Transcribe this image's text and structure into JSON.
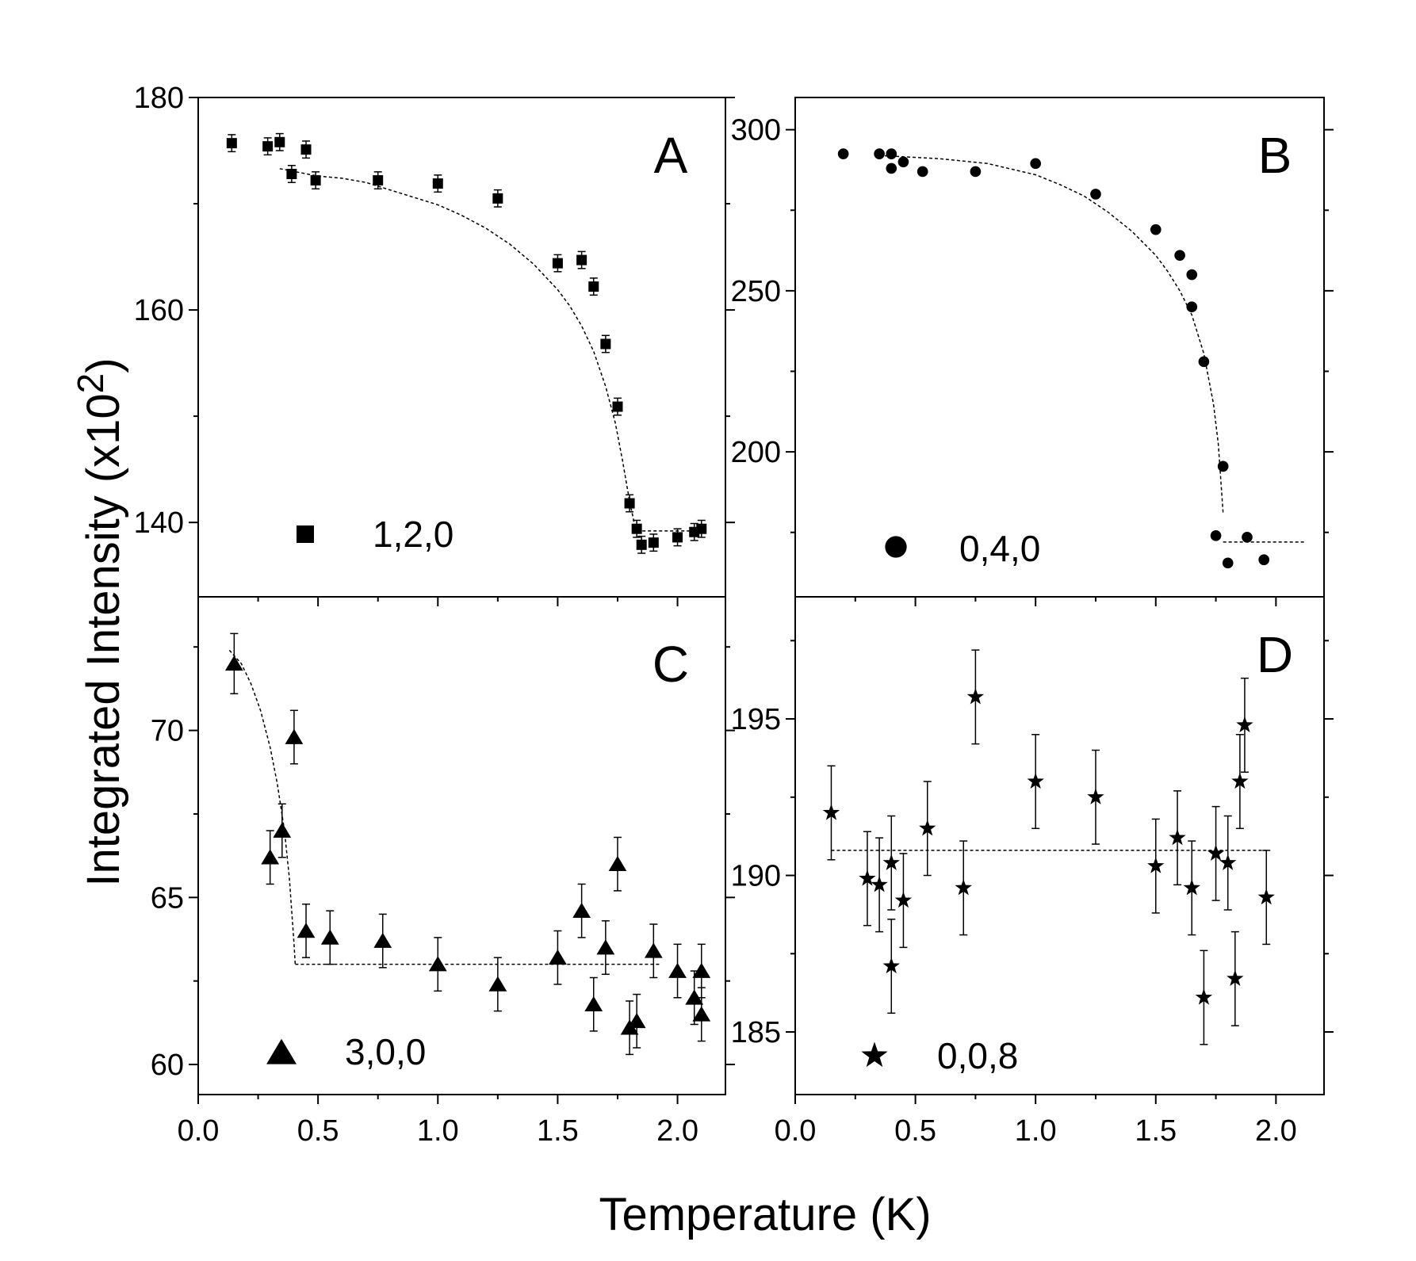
{
  "figure": {
    "xlabel": "Temperature (K)",
    "ylabel_main": "Integrated Intensity (x10",
    "ylabel_sup": "2",
    "ylabel_close": ")"
  },
  "chart_data": [
    {
      "type": "scatter",
      "panel": "A",
      "legend": "1,2,0",
      "marker": "square",
      "xlabel": "Temperature (K)",
      "ylabel": "Integrated Intensity (x10^2)",
      "xlim": [
        0.0,
        2.2
      ],
      "ylim": [
        133,
        180
      ],
      "xticks": [
        0.0,
        0.5,
        1.0,
        1.5,
        2.0
      ],
      "xtick_labels": [
        "0.0",
        "0.5",
        "1.0",
        "1.5",
        "2.0"
      ],
      "yticks": [
        140,
        160,
        180
      ],
      "ytick_labels": [
        "140",
        "160",
        "180"
      ],
      "x": [
        0.14,
        0.29,
        0.34,
        0.39,
        0.45,
        0.49,
        0.75,
        1.0,
        1.25,
        1.5,
        1.6,
        1.65,
        1.7,
        1.75,
        1.8,
        1.83,
        1.85,
        1.9,
        2.0,
        2.07,
        2.1
      ],
      "y": [
        175.7,
        175.4,
        175.8,
        172.8,
        175.1,
        172.2,
        172.2,
        171.9,
        170.5,
        164.4,
        164.7,
        162.2,
        156.8,
        150.9,
        141.8,
        139.4,
        137.9,
        138.1,
        138.6,
        139.1,
        139.4
      ],
      "yerr": [
        0.8,
        0.8,
        0.8,
        0.8,
        0.8,
        0.8,
        0.8,
        0.8,
        0.8,
        0.8,
        0.8,
        0.8,
        0.8,
        0.8,
        0.8,
        0.8,
        0.8,
        0.8,
        0.8,
        0.8,
        0.8
      ],
      "fit": {
        "x": [
          0.34,
          0.5,
          0.6,
          0.7,
          0.8,
          0.9,
          1.0,
          1.1,
          1.2,
          1.3,
          1.4,
          1.5,
          1.55,
          1.6,
          1.65,
          1.7,
          1.74,
          1.77,
          1.8,
          1.82,
          1.83
        ],
        "y": [
          173.3,
          172.6,
          172.4,
          172.0,
          171.3,
          170.6,
          169.9,
          168.9,
          167.7,
          166.2,
          164.3,
          161.9,
          160.4,
          158.5,
          156.1,
          152.8,
          149.4,
          145.9,
          142.0,
          139.9,
          139.2
        ]
      },
      "fit_tail": {
        "x": [
          1.83,
          2.12
        ],
        "y": [
          139.2,
          139.2
        ]
      }
    },
    {
      "type": "scatter",
      "panel": "B",
      "legend": "0,4,0",
      "marker": "circle",
      "xlim": [
        0.0,
        2.2
      ],
      "ylim": [
        155,
        310
      ],
      "yticks": [
        200,
        250,
        300
      ],
      "ytick_labels": [
        "200",
        "250",
        "300"
      ],
      "x": [
        0.2,
        0.35,
        0.4,
        0.4,
        0.45,
        0.53,
        0.75,
        1.0,
        1.25,
        1.5,
        1.6,
        1.65,
        1.65,
        1.7,
        1.78,
        1.75,
        1.8,
        1.88,
        1.95
      ],
      "y": [
        292.5,
        292.5,
        292.5,
        288.0,
        290.0,
        287.0,
        287.0,
        289.5,
        280.0,
        269.0,
        261.0,
        255.0,
        245.0,
        228.0,
        195.5,
        174.0,
        165.5,
        173.5,
        166.5
      ],
      "fit": {
        "x": [
          0.35,
          0.6,
          0.8,
          1.0,
          1.1,
          1.2,
          1.3,
          1.4,
          1.5,
          1.55,
          1.6,
          1.65,
          1.7,
          1.74,
          1.76,
          1.78
        ],
        "y": [
          292.0,
          291.0,
          289.5,
          286.0,
          283.0,
          279.5,
          274.5,
          268.5,
          261.0,
          256.0,
          250.0,
          242.5,
          230.5,
          215.0,
          202.5,
          181.0
        ]
      },
      "fit_tail": {
        "x": [
          1.78,
          2.12
        ],
        "y": [
          172.0,
          172.0
        ]
      }
    },
    {
      "type": "scatter",
      "panel": "C",
      "legend": "3,0,0",
      "marker": "triangle",
      "xlim": [
        0.0,
        2.2
      ],
      "ylim": [
        59.1,
        74.0
      ],
      "yticks": [
        60,
        65,
        70
      ],
      "ytick_labels": [
        "60",
        "65",
        "70"
      ],
      "x": [
        0.15,
        0.3,
        0.35,
        0.4,
        0.45,
        0.55,
        0.77,
        1.0,
        1.25,
        1.5,
        1.6,
        1.65,
        1.7,
        1.75,
        1.8,
        1.83,
        1.9,
        2.0,
        2.07,
        2.1,
        2.1
      ],
      "y": [
        72.0,
        66.2,
        67.0,
        69.8,
        64.0,
        63.8,
        63.7,
        63.0,
        62.4,
        63.2,
        64.6,
        61.8,
        63.5,
        66.0,
        61.1,
        61.3,
        63.4,
        62.8,
        62.0,
        61.5,
        62.8
      ],
      "yerr": [
        0.9,
        0.8,
        0.8,
        0.8,
        0.8,
        0.8,
        0.8,
        0.8,
        0.8,
        0.8,
        0.8,
        0.8,
        0.8,
        0.8,
        0.8,
        0.8,
        0.8,
        0.8,
        0.8,
        0.8,
        0.8
      ],
      "fit": {
        "x": [
          0.13,
          0.18,
          0.22,
          0.26,
          0.3,
          0.33,
          0.36,
          0.38,
          0.39,
          0.4,
          0.405
        ],
        "y": [
          72.4,
          72.0,
          71.4,
          70.6,
          69.5,
          68.4,
          67.0,
          65.6,
          64.6,
          63.6,
          63.0
        ]
      },
      "fit_tail": {
        "x": [
          0.405,
          1.93
        ],
        "y": [
          63.0,
          63.0
        ]
      }
    },
    {
      "type": "scatter",
      "panel": "D",
      "legend": "0,0,8",
      "marker": "star",
      "xlim": [
        0.0,
        2.2
      ],
      "ylim": [
        183.0,
        198.9
      ],
      "yticks": [
        185,
        190,
        195
      ],
      "ytick_labels": [
        "185",
        "190",
        "195"
      ],
      "x": [
        0.15,
        0.3,
        0.35,
        0.4,
        0.4,
        0.45,
        0.55,
        0.7,
        0.75,
        1.0,
        1.25,
        1.5,
        1.59,
        1.65,
        1.7,
        1.75,
        1.8,
        1.83,
        1.85,
        1.87,
        1.96
      ],
      "y": [
        192.0,
        189.9,
        189.7,
        190.4,
        187.1,
        189.2,
        191.5,
        189.6,
        195.7,
        193.0,
        192.5,
        190.3,
        191.2,
        189.6,
        186.1,
        190.7,
        190.4,
        186.7,
        193.0,
        194.8,
        189.3
      ],
      "yerr": [
        1.5,
        1.5,
        1.5,
        1.5,
        1.5,
        1.5,
        1.5,
        1.5,
        1.5,
        1.5,
        1.5,
        1.5,
        1.5,
        1.5,
        1.5,
        1.5,
        1.5,
        1.5,
        1.5,
        1.5,
        1.5
      ],
      "fit": {
        "x": [
          0.15,
          1.96
        ],
        "y": [
          190.8,
          190.8
        ]
      }
    }
  ]
}
